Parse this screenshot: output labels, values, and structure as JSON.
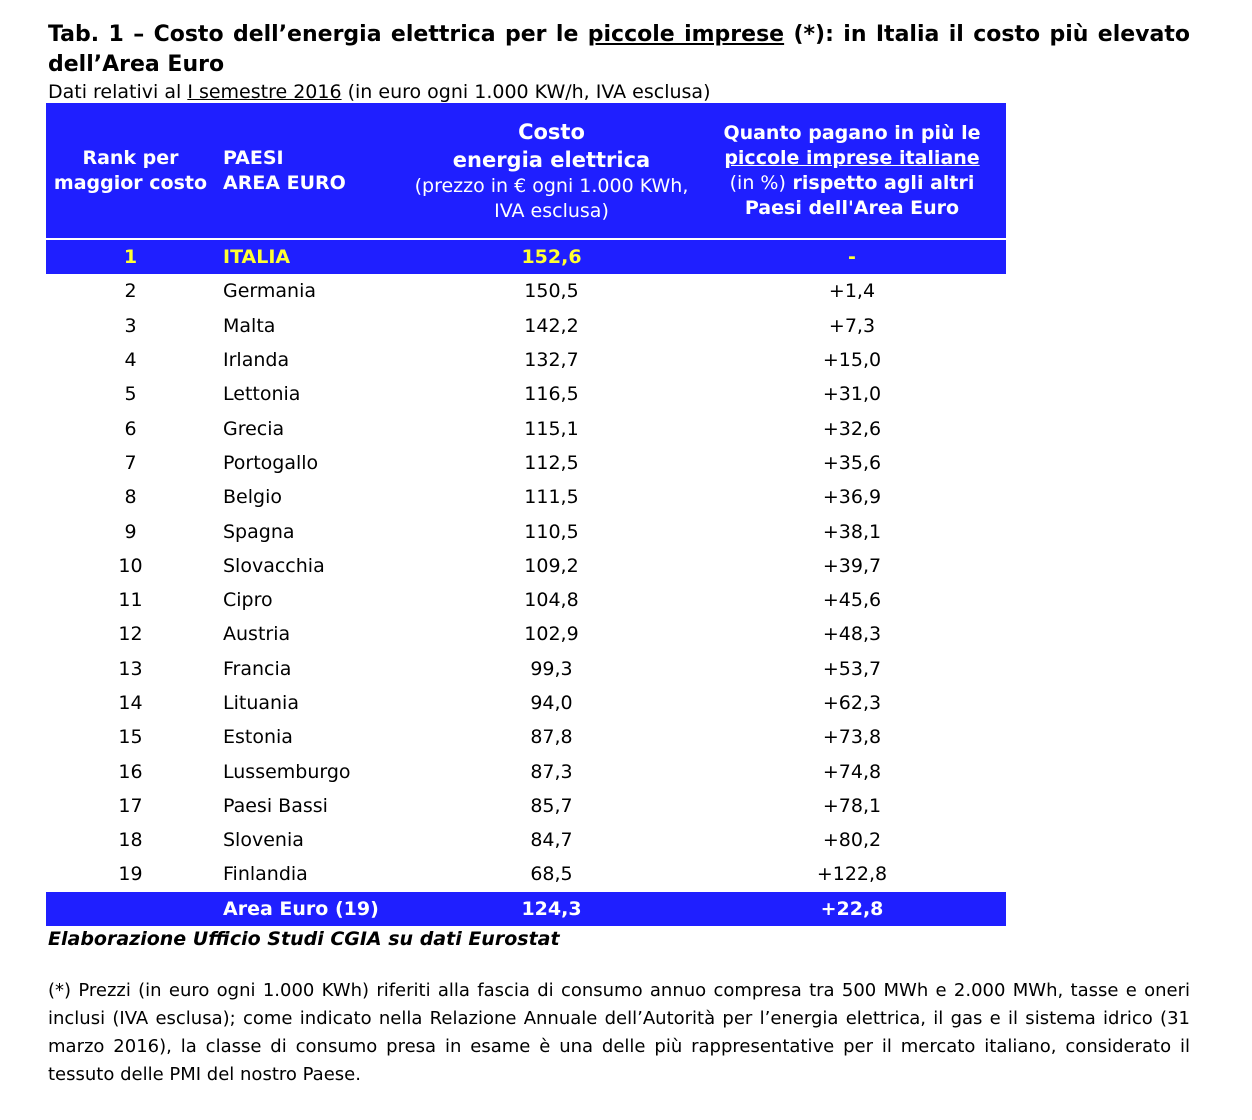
{
  "title": {
    "parts": [
      "Tab. 1 – Costo dell’energia elettrica per le ",
      "piccole imprese",
      " (*): in Italia il costo più elevato dell’Area Euro"
    ]
  },
  "subtitle": {
    "parts": [
      "Dati relativi al ",
      "I semestre 2016",
      " (in euro ogni 1.000 KW/h, IVA esclusa)"
    ]
  },
  "table": {
    "header": [
      {
        "lines": [
          "Rank per",
          "maggior costo"
        ]
      },
      {
        "lines": [
          "PAESI",
          "AREA EURO"
        ]
      },
      {
        "lines": [
          "Costo",
          "energia elettrica",
          "(prezzo in € ogni 1.000 KWh,",
          "IVA esclusa)"
        ]
      },
      {
        "lines": [
          "Quanto pagano in più le",
          "piccole imprese italiane",
          "(in %)",
          "rispetto agli altri",
          "Paesi dell'Area Euro"
        ]
      }
    ],
    "rows": [
      [
        "1",
        "ITALIA",
        "152,6",
        "-"
      ],
      [
        "2",
        "Germania",
        "150,5",
        "+1,4"
      ],
      [
        "3",
        "Malta",
        "142,2",
        "+7,3"
      ],
      [
        "4",
        "Irlanda",
        "132,7",
        "+15,0"
      ],
      [
        "5",
        "Lettonia",
        "116,5",
        "+31,0"
      ],
      [
        "6",
        "Grecia",
        "115,1",
        "+32,6"
      ],
      [
        "7",
        "Portogallo",
        "112,5",
        "+35,6"
      ],
      [
        "8",
        "Belgio",
        "111,5",
        "+36,9"
      ],
      [
        "9",
        "Spagna",
        "110,5",
        "+38,1"
      ],
      [
        "10",
        "Slovacchia",
        "109,2",
        "+39,7"
      ],
      [
        "11",
        "Cipro",
        "104,8",
        "+45,6"
      ],
      [
        "12",
        "Austria",
        "102,9",
        "+48,3"
      ],
      [
        "13",
        "Francia",
        "99,3",
        "+53,7"
      ],
      [
        "14",
        "Lituania",
        "94,0",
        "+62,3"
      ],
      [
        "15",
        "Estonia",
        "87,8",
        "+73,8"
      ],
      [
        "16",
        "Lussemburgo",
        "87,3",
        "+74,8"
      ],
      [
        "17",
        "Paesi Bassi",
        "85,7",
        "+78,1"
      ],
      [
        "18",
        "Slovenia",
        "84,7",
        "+80,2"
      ],
      [
        "19",
        "Finlandia",
        "68,5",
        "+122,8"
      ]
    ],
    "total": [
      "Area Euro (19)",
      "124,3",
      "+22,8"
    ]
  },
  "source": "Elaborazione Ufficio Studi CGIA su dati Eurostat",
  "note": "(*) Prezzi (in euro ogni 1.000 KWh) riferiti alla fascia di consumo annuo compresa tra 500 MWh e 2.000 MWh, tasse e oneri inclusi (IVA esclusa); come indicato nella Relazione Annuale dell’Autorità per l’energia elettrica, il gas e il sistema idrico (31 marzo 2016), la classe di consumo presa in esame è una delle più rappresentative per il mercato italiano, considerato il tessuto delle PMI del nostro Paese."
}
